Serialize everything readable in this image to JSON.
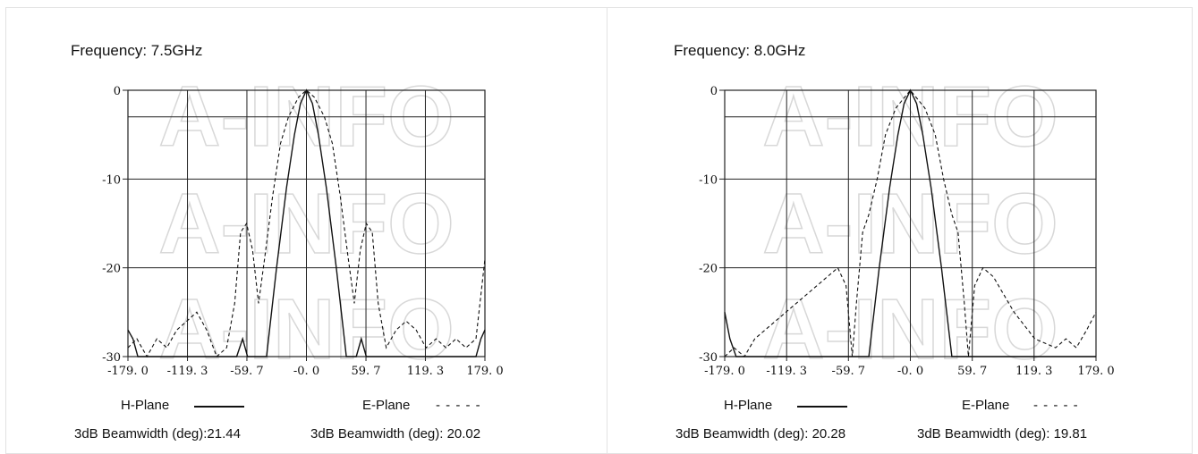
{
  "watermark": "A-INFO",
  "chart_data": [
    {
      "type": "line",
      "title": "Frequency: 7.5GHz",
      "xlabel": "",
      "ylabel": "",
      "xlim": [
        -179,
        179
      ],
      "ylim": [
        -30,
        0
      ],
      "x_ticks": [
        "-179. 0",
        "-119. 3",
        "-59. 7",
        "-0. 0",
        "59. 7",
        "119. 3",
        "179. 0"
      ],
      "y_ticks": [
        "0",
        "-10",
        "-20",
        "-30"
      ],
      "grid": true,
      "series": [
        {
          "name": "H-Plane",
          "style": "solid",
          "points": [
            [
              -179,
              -27
            ],
            [
              -174,
              -28
            ],
            [
              -169,
              -30
            ],
            [
              -164,
              -30
            ],
            [
              -70,
              -30
            ],
            [
              -64,
              -28
            ],
            [
              -59,
              -30
            ],
            [
              -40,
              -30
            ],
            [
              -30,
              -20
            ],
            [
              -20,
              -11
            ],
            [
              -12,
              -5
            ],
            [
              -6,
              -1.5
            ],
            [
              0,
              0
            ],
            [
              6,
              -1.5
            ],
            [
              12,
              -5
            ],
            [
              20,
              -11
            ],
            [
              30,
              -20
            ],
            [
              40,
              -30
            ],
            [
              50,
              -30
            ],
            [
              55,
              -28
            ],
            [
              60,
              -30
            ],
            [
              170,
              -30
            ],
            [
              175,
              -28
            ],
            [
              179,
              -27
            ]
          ]
        },
        {
          "name": "E-Plane",
          "style": "dashed",
          "points": [
            [
              -179,
              -29
            ],
            [
              -170,
              -28
            ],
            [
              -160,
              -30
            ],
            [
              -150,
              -28
            ],
            [
              -140,
              -29
            ],
            [
              -130,
              -27
            ],
            [
              -120,
              -26
            ],
            [
              -110,
              -25
            ],
            [
              -100,
              -27
            ],
            [
              -90,
              -30
            ],
            [
              -80,
              -29
            ],
            [
              -72,
              -24
            ],
            [
              -66,
              -16
            ],
            [
              -60,
              -15
            ],
            [
              -54,
              -18
            ],
            [
              -48,
              -24
            ],
            [
              -42,
              -19
            ],
            [
              -34,
              -12
            ],
            [
              -26,
              -6
            ],
            [
              -18,
              -3
            ],
            [
              -8,
              -0.8
            ],
            [
              0,
              0
            ],
            [
              8,
              -0.8
            ],
            [
              18,
              -3
            ],
            [
              26,
              -6
            ],
            [
              34,
              -12
            ],
            [
              42,
              -19
            ],
            [
              48,
              -24
            ],
            [
              54,
              -18
            ],
            [
              60,
              -15
            ],
            [
              66,
              -16
            ],
            [
              72,
              -24
            ],
            [
              80,
              -29
            ],
            [
              90,
              -27
            ],
            [
              100,
              -26
            ],
            [
              110,
              -27
            ],
            [
              120,
              -29
            ],
            [
              130,
              -28
            ],
            [
              140,
              -29
            ],
            [
              150,
              -28
            ],
            [
              160,
              -29
            ],
            [
              170,
              -28
            ],
            [
              179,
              -19
            ]
          ]
        }
      ],
      "legend": {
        "h_label": "H-Plane",
        "e_label": "E-Plane",
        "e_dashes": "- - - - -"
      },
      "beamwidth_h": "3dB Beamwidth (deg):21.44",
      "beamwidth_e": "3dB Beamwidth (deg): 20.02"
    },
    {
      "type": "line",
      "title": "Frequency: 8.0GHz",
      "xlabel": "",
      "ylabel": "",
      "xlim": [
        -179,
        179
      ],
      "ylim": [
        -30,
        0
      ],
      "x_ticks": [
        "-179. 0",
        "-119. 3",
        "-59. 7",
        "-0. 0",
        "59. 7",
        "119. 3",
        "179. 0"
      ],
      "y_ticks": [
        "0",
        "-10",
        "-20",
        "-30"
      ],
      "grid": true,
      "series": [
        {
          "name": "H-Plane",
          "style": "solid",
          "points": [
            [
              -179,
              -25
            ],
            [
              -174,
              -28
            ],
            [
              -168,
              -30
            ],
            [
              -40,
              -30
            ],
            [
              -30,
              -20
            ],
            [
              -20,
              -11
            ],
            [
              -12,
              -5
            ],
            [
              -6,
              -1.5
            ],
            [
              0,
              0
            ],
            [
              6,
              -1.5
            ],
            [
              12,
              -5
            ],
            [
              20,
              -11
            ],
            [
              30,
              -20
            ],
            [
              40,
              -30
            ],
            [
              179,
              -30
            ]
          ]
        },
        {
          "name": "E-Plane",
          "style": "dashed",
          "points": [
            [
              -179,
              -30
            ],
            [
              -170,
              -29
            ],
            [
              -160,
              -30
            ],
            [
              -150,
              -28
            ],
            [
              -140,
              -27
            ],
            [
              -120,
              -25
            ],
            [
              -100,
              -23
            ],
            [
              -80,
              -21
            ],
            [
              -70,
              -20
            ],
            [
              -62,
              -22
            ],
            [
              -56,
              -30
            ],
            [
              -52,
              -24
            ],
            [
              -46,
              -16
            ],
            [
              -40,
              -14
            ],
            [
              -32,
              -10
            ],
            [
              -24,
              -5
            ],
            [
              -14,
              -2
            ],
            [
              0,
              0
            ],
            [
              14,
              -2
            ],
            [
              24,
              -5
            ],
            [
              32,
              -10
            ],
            [
              40,
              -14
            ],
            [
              46,
              -16
            ],
            [
              52,
              -24
            ],
            [
              56,
              -30
            ],
            [
              62,
              -22
            ],
            [
              70,
              -20
            ],
            [
              80,
              -21
            ],
            [
              100,
              -25
            ],
            [
              120,
              -28
            ],
            [
              140,
              -29
            ],
            [
              150,
              -28
            ],
            [
              160,
              -29
            ],
            [
              170,
              -27
            ],
            [
              179,
              -25
            ]
          ]
        }
      ],
      "legend": {
        "h_label": "H-Plane",
        "e_label": "E-Plane",
        "e_dashes": "- - - - -"
      },
      "beamwidth_h": "3dB Beamwidth (deg): 20.28",
      "beamwidth_e": "3dB Beamwidth (deg): 19.81"
    }
  ]
}
